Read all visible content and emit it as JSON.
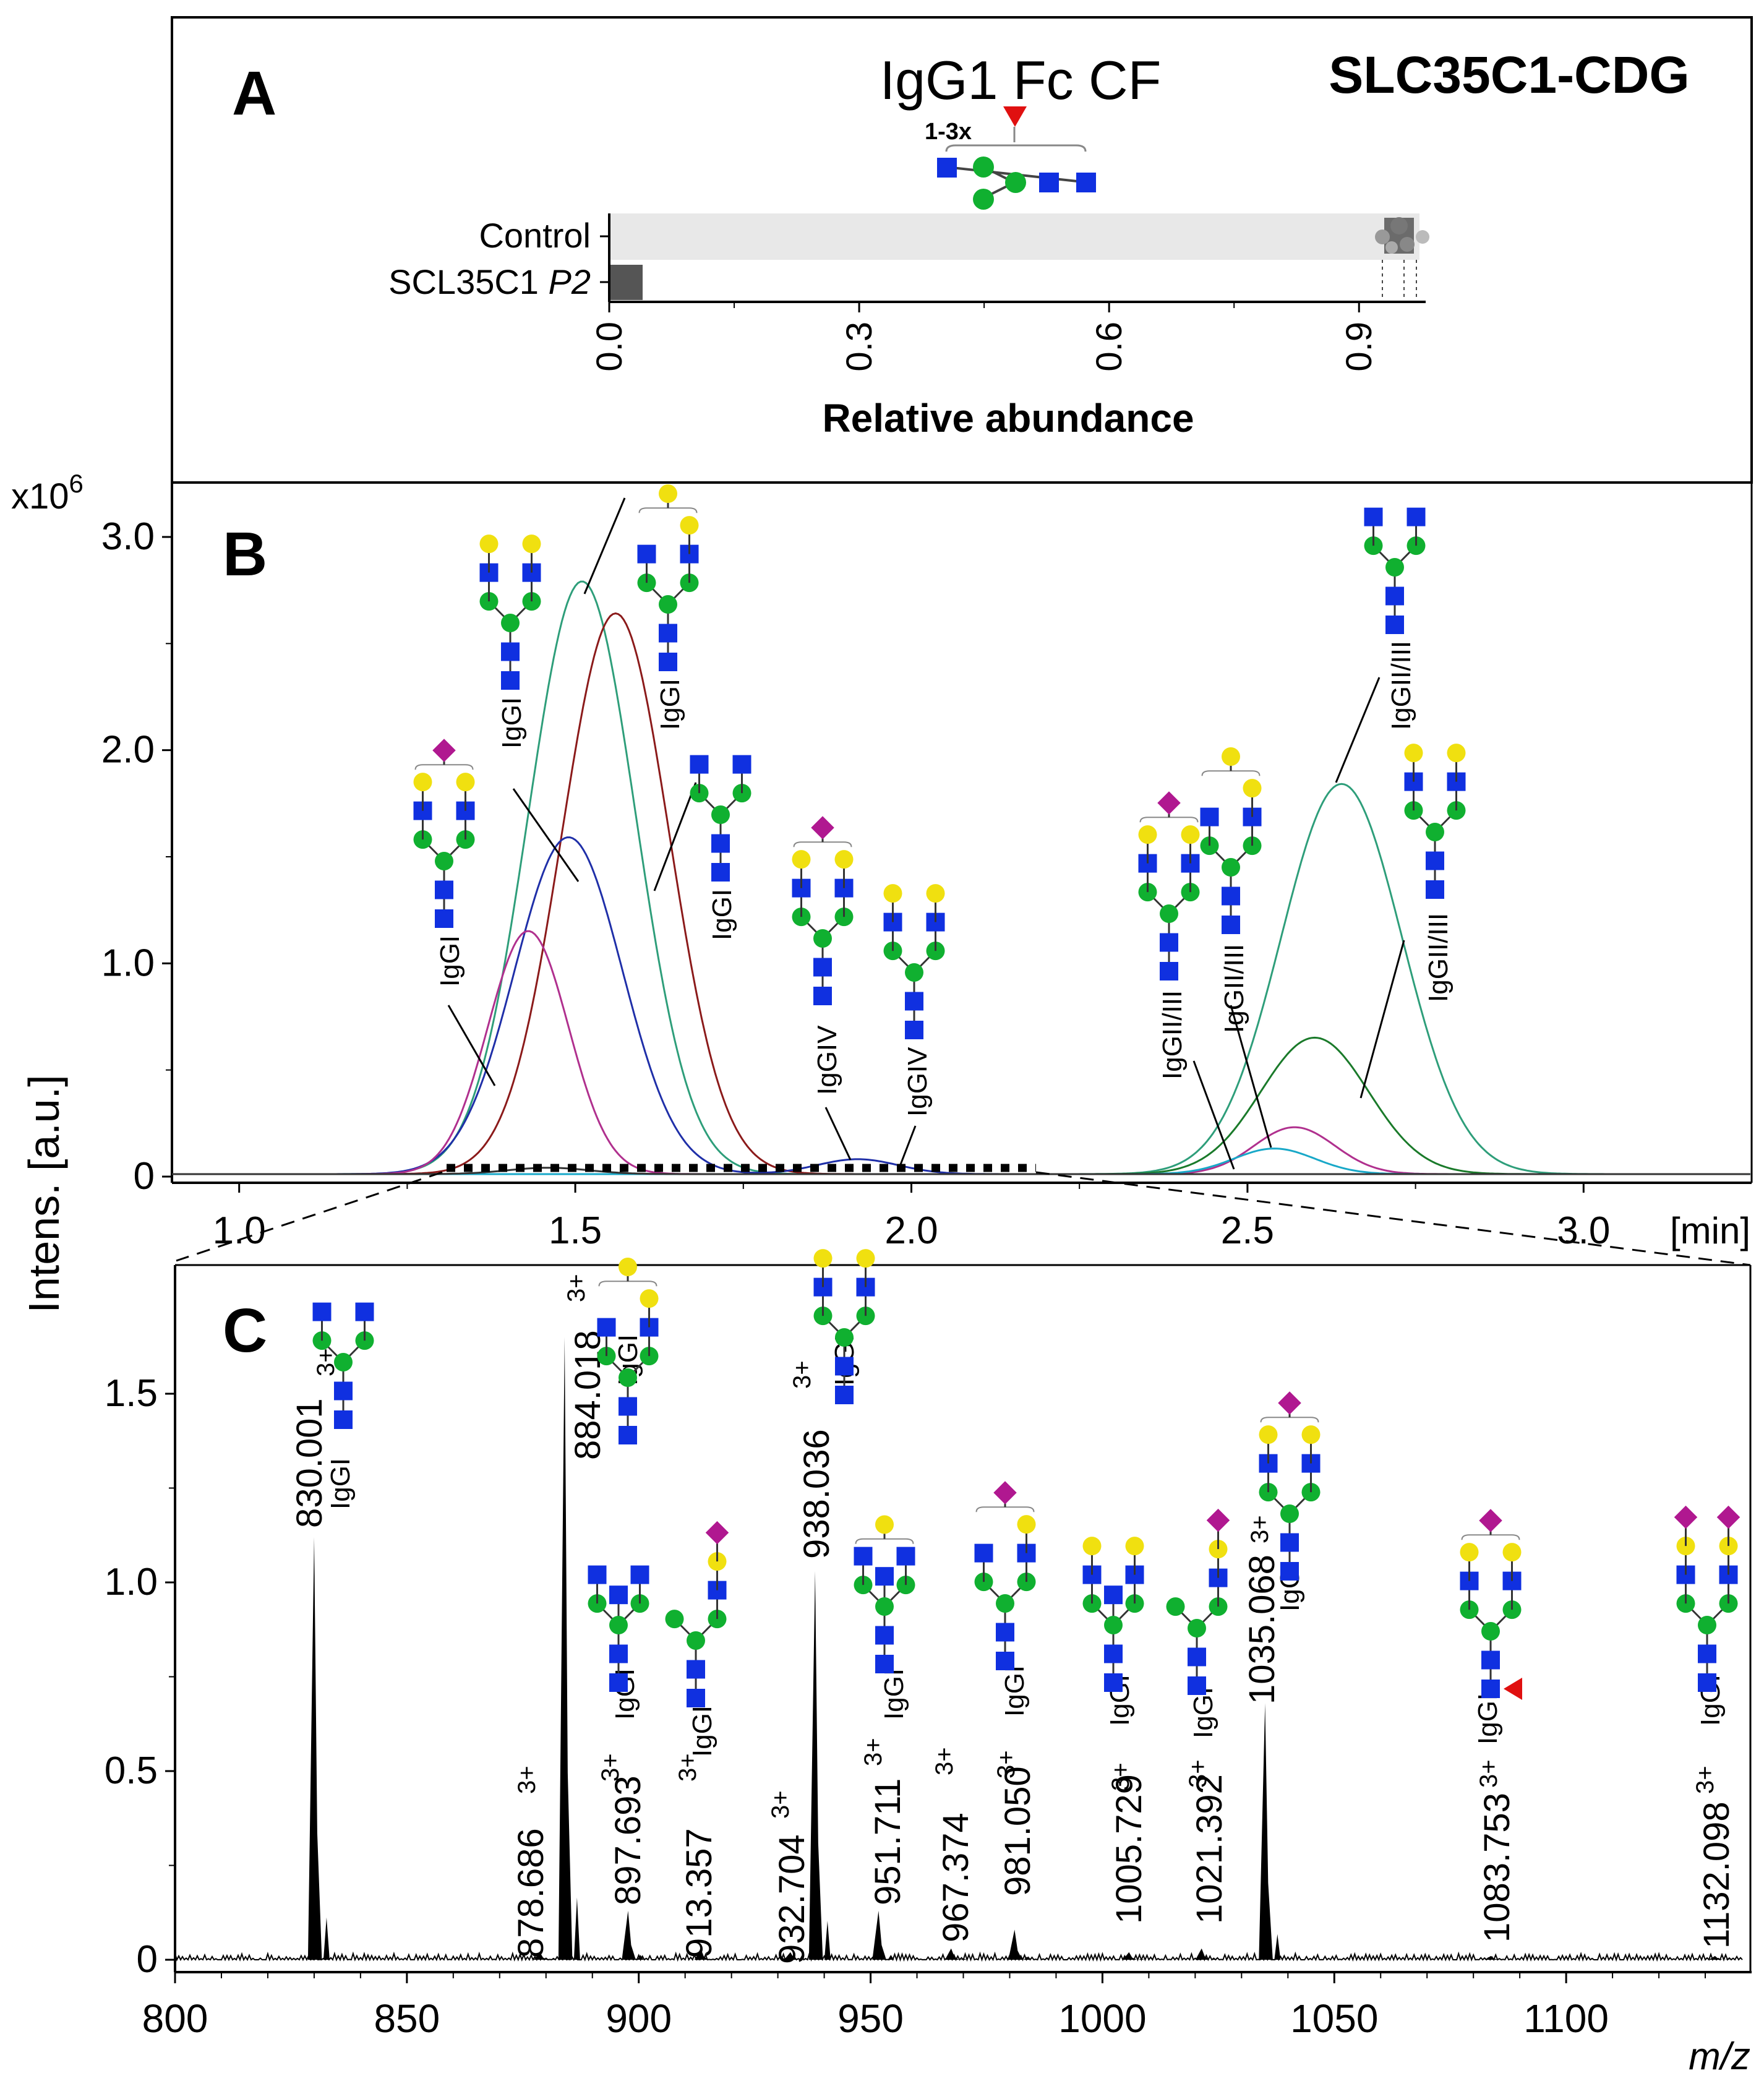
{
  "panel_a": {
    "letter": "A",
    "title": "IgG1 Fc CF",
    "disease": "SLC35C1-CDG",
    "glycan_annotation": "1-3x",
    "bar_labels_prefix": [
      "Control",
      "SCL35C1"
    ],
    "bar_label_italic": "P2",
    "xlabel": "Relative abundance",
    "colors": {
      "control_bar": "#e8e8e8",
      "patient_bar": "#555555"
    }
  },
  "panel_b": {
    "letter": "B",
    "multiplier": "x10",
    "multiplier_exp": "6",
    "unit_label": "[min]"
  },
  "panel_c": {
    "letter": "C",
    "xlabel": "m/z"
  },
  "shared_ylabel": "Intens. [a.u.]",
  "chart_data": [
    {
      "id": "A",
      "type": "bar",
      "orientation": "horizontal",
      "categories": [
        "Control",
        "SCL35C1 P2"
      ],
      "values": [
        0.975,
        0.04
      ],
      "xlim": [
        0,
        0.98
      ],
      "xticks": [
        "0.0",
        "0.3",
        "0.6",
        "0.9"
      ],
      "xlabel": "Relative abundance",
      "title": "IgG1 Fc CF"
    },
    {
      "id": "B",
      "type": "line",
      "xlabel": "[min]",
      "ylabel": "Intens. [a.u.]",
      "xlim": [
        0.9,
        3.25
      ],
      "ylim": [
        0,
        3.1
      ],
      "xticks": [
        "1.0",
        "1.5",
        "2.0",
        "2.5",
        "3.0"
      ],
      "yticks": [
        "0",
        "1.0",
        "2.0",
        "3.0"
      ],
      "series": [
        {
          "color": "#2e9e7a",
          "peaks": [
            [
              1.51,
              2.78,
              0.08
            ],
            [
              2.64,
              1.83,
              0.09
            ]
          ]
        },
        {
          "color": "#8b1a1a",
          "peaks": [
            [
              1.56,
              2.63,
              0.08
            ]
          ]
        },
        {
          "color": "#1f2fa8",
          "peaks": [
            [
              1.49,
              1.58,
              0.08
            ],
            [
              1.92,
              0.07,
              0.06
            ]
          ]
        },
        {
          "color": "#b0308e",
          "peaks": [
            [
              1.43,
              1.14,
              0.06
            ],
            [
              2.57,
              0.22,
              0.06
            ]
          ]
        },
        {
          "color": "#1a7a2a",
          "peaks": [
            [
              2.6,
              0.64,
              0.08
            ]
          ]
        },
        {
          "color": "#18a8c8",
          "peaks": [
            [
              2.54,
              0.12,
              0.06
            ]
          ]
        },
        {
          "color": "#333333",
          "peaks": [
            [
              1.46,
              0.03,
              0.06
            ]
          ]
        }
      ],
      "peak_labels": [
        "IgGI",
        "IgGI",
        "IgGI",
        "IgGI",
        "IgGIV",
        "IgGIV",
        "IgGII/III",
        "IgGII/III",
        "IgGII/III",
        "IgGII/III"
      ]
    },
    {
      "id": "C",
      "type": "bar",
      "xlabel": "m/z",
      "xlim": [
        800,
        1140
      ],
      "ylim": [
        0,
        1.75
      ],
      "xticks": [
        "800",
        "850",
        "900",
        "950",
        "1000",
        "1050",
        "1100"
      ],
      "yticks": [
        "0",
        "0.5",
        "1.0",
        "1.5"
      ],
      "peaks": [
        {
          "mz": 830.001,
          "value": 1.12,
          "label": "830.001",
          "charge": "3+",
          "subclass": "IgGI"
        },
        {
          "mz": 878.686,
          "value": 0.02,
          "label": "878.686",
          "charge": "3+",
          "subclass": ""
        },
        {
          "mz": 884.018,
          "value": 1.65,
          "label": "884.018",
          "charge": "3+",
          "subclass": "IgGI"
        },
        {
          "mz": 897.693,
          "value": 0.13,
          "label": "897.693",
          "charge": "3+",
          "subclass": "IgGI"
        },
        {
          "mz": 913.357,
          "value": 0.03,
          "label": "913.357",
          "charge": "3+",
          "subclass": "IgGI"
        },
        {
          "mz": 932.704,
          "value": 0.02,
          "label": "932.704",
          "charge": "3+",
          "subclass": ""
        },
        {
          "mz": 938.036,
          "value": 1.03,
          "label": "938.036",
          "charge": "3+",
          "subclass": "IgGI"
        },
        {
          "mz": 951.711,
          "value": 0.13,
          "label": "951.711",
          "charge": "3+",
          "subclass": "IgGI"
        },
        {
          "mz": 967.374,
          "value": 0.03,
          "label": "967.374",
          "charge": "3+",
          "subclass": ""
        },
        {
          "mz": 981.05,
          "value": 0.08,
          "label": "981.050",
          "charge": "3+",
          "subclass": "IgGI"
        },
        {
          "mz": 1005.729,
          "value": 0.02,
          "label": "1005.729",
          "charge": "3+",
          "subclass": "IgGI"
        },
        {
          "mz": 1021.392,
          "value": 0.03,
          "label": "1021.392",
          "charge": "3+",
          "subclass": "IgGI"
        },
        {
          "mz": 1035.068,
          "value": 0.68,
          "label": "1035.068",
          "charge": "3+",
          "subclass": "IgGI"
        },
        {
          "mz": 1083.753,
          "value": 0.01,
          "label": "1083.753",
          "charge": "3+",
          "subclass": "IgGI"
        },
        {
          "mz": 1132.098,
          "value": 0.01,
          "label": "1132.098",
          "charge": "3+",
          "subclass": "IgGI"
        }
      ]
    }
  ],
  "glycan_colors": {
    "glcnac": "#1030e0",
    "mannose": "#10b030",
    "galactose": "#f0e010",
    "sialic": "#b01890",
    "fucose": "#e01010"
  }
}
